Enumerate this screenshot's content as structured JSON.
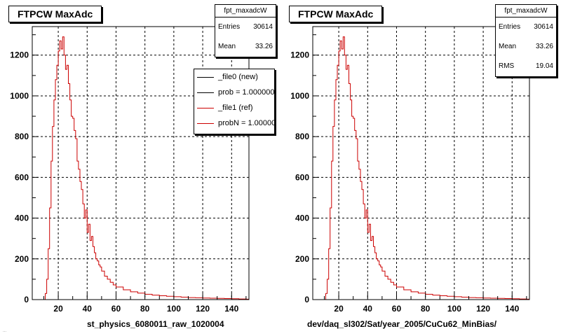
{
  "chart_data": [
    {
      "type": "line",
      "title": "FTPCW MaxAdc",
      "xlabel": "st_physics_6080011_raw_1020004",
      "ylabel": "",
      "xlim": [
        2,
        152
      ],
      "ylim": [
        0,
        1340
      ],
      "xticks": [
        20,
        40,
        60,
        80,
        100,
        120,
        140
      ],
      "yticks": [
        0,
        200,
        400,
        600,
        800,
        1000,
        1200
      ],
      "grid": true,
      "legend_position": "top-right",
      "stats": {
        "name": "fpt_maxadcW",
        "rows": [
          {
            "label": "Entries",
            "value": "30614"
          },
          {
            "label": "Mean",
            "value": "33.26"
          }
        ]
      },
      "legend": [
        {
          "text": "_file0 (new)",
          "color": "#000000"
        },
        {
          "text": "prob = 1.000000",
          "color": "#000000"
        },
        {
          "text": "_file1 (ref)",
          "color": "#cc0000"
        },
        {
          "text": "probN = 1.000000",
          "color": "#cc0000"
        }
      ],
      "series": [
        {
          "name": "_file1 (ref)",
          "color": "#cc0000",
          "x": [
            10,
            11,
            12,
            13,
            14,
            15,
            16,
            17,
            18,
            19,
            20,
            21,
            22,
            23,
            24,
            25,
            26,
            27,
            28,
            29,
            30,
            31,
            32,
            33,
            34,
            35,
            36,
            37,
            38,
            39,
            40,
            41,
            42,
            43,
            44,
            45,
            46,
            47,
            48,
            49,
            50,
            52,
            54,
            56,
            58,
            60,
            65,
            70,
            75,
            80,
            85,
            90,
            95,
            100,
            105,
            110,
            115,
            120,
            125,
            130,
            135,
            140,
            145,
            150
          ],
          "y": [
            0,
            30,
            100,
            250,
            450,
            680,
            850,
            980,
            1080,
            1150,
            1220,
            1270,
            1230,
            1290,
            1200,
            1130,
            1150,
            1060,
            980,
            900,
            890,
            830,
            790,
            680,
            640,
            580,
            540,
            470,
            400,
            440,
            330,
            370,
            290,
            310,
            260,
            230,
            200,
            190,
            170,
            160,
            140,
            115,
            100,
            85,
            72,
            62,
            48,
            38,
            32,
            26,
            22,
            19,
            16,
            14,
            12,
            10,
            9,
            8,
            7,
            6,
            5,
            4,
            3,
            2
          ]
        }
      ]
    },
    {
      "type": "line",
      "title": "FTPCW MaxAdc",
      "xlabel": "dev/daq_sl302/Sat/year_2005/CuCu62_MinBias/",
      "ylabel": "",
      "xlim": [
        2,
        152
      ],
      "ylim": [
        0,
        1340
      ],
      "xticks": [
        20,
        40,
        60,
        80,
        100,
        120,
        140
      ],
      "yticks": [
        0,
        200,
        400,
        600,
        800,
        1000,
        1200
      ],
      "grid": true,
      "stats": {
        "name": "fpt_maxadcW",
        "rows": [
          {
            "label": "Entries",
            "value": "30614"
          },
          {
            "label": "Mean",
            "value": "33.26"
          },
          {
            "label": "RMS",
            "value": "19.04"
          }
        ]
      },
      "series": [
        {
          "color": "#cc0000",
          "x": [
            10,
            11,
            12,
            13,
            14,
            15,
            16,
            17,
            18,
            19,
            20,
            21,
            22,
            23,
            24,
            25,
            26,
            27,
            28,
            29,
            30,
            31,
            32,
            33,
            34,
            35,
            36,
            37,
            38,
            39,
            40,
            41,
            42,
            43,
            44,
            45,
            46,
            47,
            48,
            49,
            50,
            52,
            54,
            56,
            58,
            60,
            65,
            70,
            75,
            80,
            85,
            90,
            95,
            100,
            105,
            110,
            115,
            120,
            125,
            130,
            135,
            140,
            145,
            150
          ],
          "y": [
            0,
            30,
            100,
            250,
            450,
            680,
            850,
            980,
            1080,
            1150,
            1220,
            1270,
            1230,
            1290,
            1200,
            1130,
            1150,
            1060,
            980,
            900,
            890,
            830,
            790,
            680,
            640,
            580,
            540,
            470,
            400,
            440,
            330,
            370,
            290,
            310,
            260,
            230,
            200,
            190,
            170,
            160,
            140,
            115,
            100,
            85,
            72,
            62,
            48,
            38,
            32,
            26,
            22,
            19,
            16,
            14,
            12,
            10,
            9,
            8,
            7,
            6,
            5,
            4,
            3,
            2
          ]
        }
      ]
    }
  ],
  "footer_text": "..."
}
